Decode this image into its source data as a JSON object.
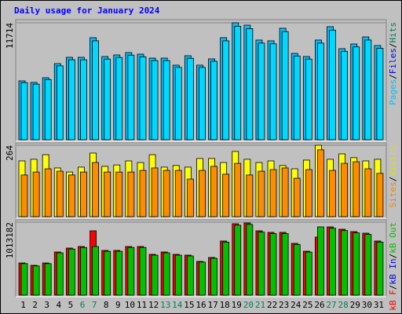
{
  "chart_data": [
    {
      "type": "bar",
      "title": "Daily usage for January 2024",
      "title_color": "#0000ff",
      "ylim": [
        0,
        11714
      ],
      "yticks": [
        {
          "value": 11714,
          "label": "11714"
        }
      ],
      "legend": [
        {
          "text": "Pages",
          "color": "#00c0ff"
        },
        {
          "text": "Files",
          "color": "#0000ff"
        },
        {
          "text": "Hits",
          "color": "#00805c"
        }
      ],
      "legend_separator": "/",
      "series": [
        {
          "color": "#00c0ff",
          "values": [
            5896,
            5739,
            6211,
            7626,
            8255,
            8255,
            10220,
            8333,
            8491,
            8727,
            8569,
            8176,
            8176,
            7469,
            8412,
            7469,
            8098,
            10220,
            11714,
            11478,
            9984,
            9906,
            11164,
            8648,
            8333,
            9984,
            11321,
            9120,
            9591,
            10299,
            9434
          ]
        },
        {
          "color": "#00d8ff",
          "values": [
            5720,
            5570,
            6030,
            7400,
            8010,
            8010,
            9910,
            8080,
            8240,
            8470,
            8310,
            7930,
            7930,
            7250,
            8160,
            7250,
            7860,
            9910,
            11360,
            11130,
            9680,
            9610,
            10830,
            8390,
            8080,
            9680,
            10980,
            8850,
            9300,
            9990,
            9150
          ]
        }
      ]
    },
    {
      "type": "bar",
      "ylim": [
        0,
        264
      ],
      "yticks": [
        {
          "value": 264,
          "label": "264"
        }
      ],
      "legend": [
        {
          "text": "Sites",
          "color": "#ff8000"
        },
        {
          "text": "Visits",
          "color": "#e0e000"
        }
      ],
      "legend_separator": "/",
      "series": [
        {
          "color": "#ffff00",
          "values": [
            206,
            212,
            229,
            180,
            165,
            183,
            235,
            186,
            191,
            206,
            200,
            229,
            183,
            189,
            183,
            215,
            215,
            200,
            241,
            212,
            200,
            206,
            189,
            177,
            209,
            264,
            212,
            232,
            218,
            206,
            212
          ]
        },
        {
          "color": "#ff8c00",
          "values": [
            154,
            165,
            177,
            168,
            154,
            165,
            200,
            165,
            165,
            165,
            171,
            180,
            171,
            171,
            139,
            171,
            186,
            157,
            197,
            154,
            168,
            174,
            180,
            142,
            174,
            247,
            171,
            197,
            203,
            177,
            160
          ]
        }
      ]
    },
    {
      "type": "bar",
      "ylim": [
        0,
        1013182
      ],
      "yticks": [
        {
          "value": 1013182,
          "label": "1013182"
        }
      ],
      "legend": [
        {
          "text": "kB F",
          "color": "#ff0000"
        },
        {
          "text": "kB In",
          "color": "#0000ff"
        },
        {
          "text": "kB Out",
          "color": "#00c000"
        }
      ],
      "legend_separator": "/",
      "categories": [
        "1",
        "2",
        "3",
        "4",
        "5",
        "6",
        "7",
        "8",
        "9",
        "10",
        "11",
        "12",
        "13",
        "14",
        "15",
        "16",
        "17",
        "18",
        "19",
        "20",
        "21",
        "22",
        "23",
        "24",
        "25",
        "26",
        "27",
        "28",
        "29",
        "30",
        "31"
      ],
      "category_colors": [
        "#000000",
        "#000000",
        "#000000",
        "#000000",
        "#000000",
        "#00805c",
        "#00805c",
        "#000000",
        "#000000",
        "#000000",
        "#000000",
        "#000000",
        "#00805c",
        "#00805c",
        "#000000",
        "#000000",
        "#000000",
        "#000000",
        "#000000",
        "#00805c",
        "#00805c",
        "#000000",
        "#000000",
        "#000000",
        "#000000",
        "#000000",
        "#00805c",
        "#00805c",
        "#000000",
        "#000000",
        "#000000"
      ],
      "series": [
        {
          "color": "#ff0000",
          "values": [
            446670,
            413986,
            446670,
            599193,
            653666,
            675455,
            893333,
            620983,
            620983,
            675455,
            675455,
            566510,
            599193,
            566510,
            555616,
            468459,
            522931,
            751716,
            991393,
            1002287,
            893333,
            871544,
            871544,
            719033,
            610088,
            806188,
            947816,
            915134,
            882451,
            860662,
            751716
          ]
        },
        {
          "color": "#00c000",
          "values": [
            437700,
            405700,
            437700,
            587200,
            640600,
            661900,
            675455,
            608600,
            608600,
            661900,
            661900,
            555200,
            587200,
            555200,
            544500,
            459100,
            512500,
            736700,
            971600,
            982200,
            875500,
            854100,
            854100,
            704700,
            597900,
            947816,
            928800,
            896800,
            864800,
            843400,
            736700
          ]
        }
      ]
    }
  ]
}
